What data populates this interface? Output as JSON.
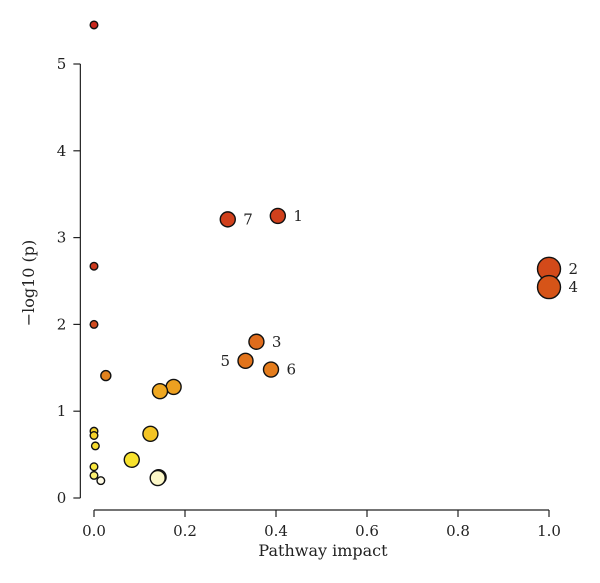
{
  "chart_data": {
    "type": "scatter",
    "xlabel": "Pathway impact",
    "ylabel": "−log10 (p)",
    "xlim": [
      -0.03,
      1.0
    ],
    "ylim": [
      0,
      5.6
    ],
    "x_ticks": [
      {
        "value": 0.0,
        "label": "0.0"
      },
      {
        "value": 0.2,
        "label": "0.2"
      },
      {
        "value": 0.4,
        "label": "0.4"
      },
      {
        "value": 0.6,
        "label": "0.6"
      },
      {
        "value": 0.8,
        "label": "0.8"
      },
      {
        "value": 1.0,
        "label": "1.0"
      }
    ],
    "y_ticks": [
      {
        "value": 0,
        "label": "0"
      },
      {
        "value": 1,
        "label": "1"
      },
      {
        "value": 2,
        "label": "2"
      },
      {
        "value": 3,
        "label": "3"
      },
      {
        "value": 4,
        "label": "4"
      },
      {
        "value": 5,
        "label": "5"
      }
    ],
    "grid": false,
    "legend": "none",
    "note_size": "point size reflects pathway impact; color from yellow (low) to red (high significance)",
    "points": [
      {
        "x": 0.0,
        "y": 5.45,
        "size": "small",
        "color": "#c8281e",
        "label": ""
      },
      {
        "x": 0.404,
        "y": 3.25,
        "size": "large",
        "color": "#d0401c",
        "label": "1"
      },
      {
        "x": 0.294,
        "y": 3.21,
        "size": "large",
        "color": "#d0401c",
        "label": "7"
      },
      {
        "x": 0.0,
        "y": 2.67,
        "size": "small",
        "color": "#cc3a1e",
        "label": ""
      },
      {
        "x": 1.0,
        "y": 2.64,
        "size": "xlarge",
        "color": "#d34a1a",
        "label": "2"
      },
      {
        "x": 1.0,
        "y": 2.43,
        "size": "xlarge",
        "color": "#d65418",
        "label": "4"
      },
      {
        "x": 0.0,
        "y": 2.0,
        "size": "small",
        "color": "#cf4a1e",
        "label": ""
      },
      {
        "x": 0.357,
        "y": 1.8,
        "size": "large",
        "color": "#e06c1c",
        "label": "3"
      },
      {
        "x": 0.333,
        "y": 1.58,
        "size": "large",
        "color": "#e2741c",
        "label": "5"
      },
      {
        "x": 0.389,
        "y": 1.48,
        "size": "large",
        "color": "#e47c1c",
        "label": "6"
      },
      {
        "x": 0.026,
        "y": 1.41,
        "size": "medium",
        "color": "#e2821e",
        "label": ""
      },
      {
        "x": 0.175,
        "y": 1.28,
        "size": "large",
        "color": "#eda020",
        "label": ""
      },
      {
        "x": 0.145,
        "y": 1.23,
        "size": "large",
        "color": "#efa822",
        "label": ""
      },
      {
        "x": 0.0,
        "y": 0.77,
        "size": "small",
        "color": "#f6d22a",
        "label": ""
      },
      {
        "x": 0.124,
        "y": 0.74,
        "size": "large",
        "color": "#f4c424",
        "label": ""
      },
      {
        "x": 0.0,
        "y": 0.72,
        "size": "small",
        "color": "#f6d22a",
        "label": ""
      },
      {
        "x": 0.003,
        "y": 0.6,
        "size": "small",
        "color": "#f7dc30",
        "label": ""
      },
      {
        "x": 0.083,
        "y": 0.44,
        "size": "large",
        "color": "#f8e22e",
        "label": ""
      },
      {
        "x": 0.0,
        "y": 0.36,
        "size": "small",
        "color": "#fae840",
        "label": ""
      },
      {
        "x": 0.0,
        "y": 0.26,
        "size": "small",
        "color": "#fbef70",
        "label": ""
      },
      {
        "x": 0.142,
        "y": 0.24,
        "size": "large",
        "color": "#fdf4a8",
        "label": ""
      },
      {
        "x": 0.14,
        "y": 0.23,
        "size": "large",
        "color": "#fdf8c8",
        "label": ""
      },
      {
        "x": 0.015,
        "y": 0.2,
        "size": "small",
        "color": "#fffbe6",
        "label": ""
      }
    ]
  }
}
